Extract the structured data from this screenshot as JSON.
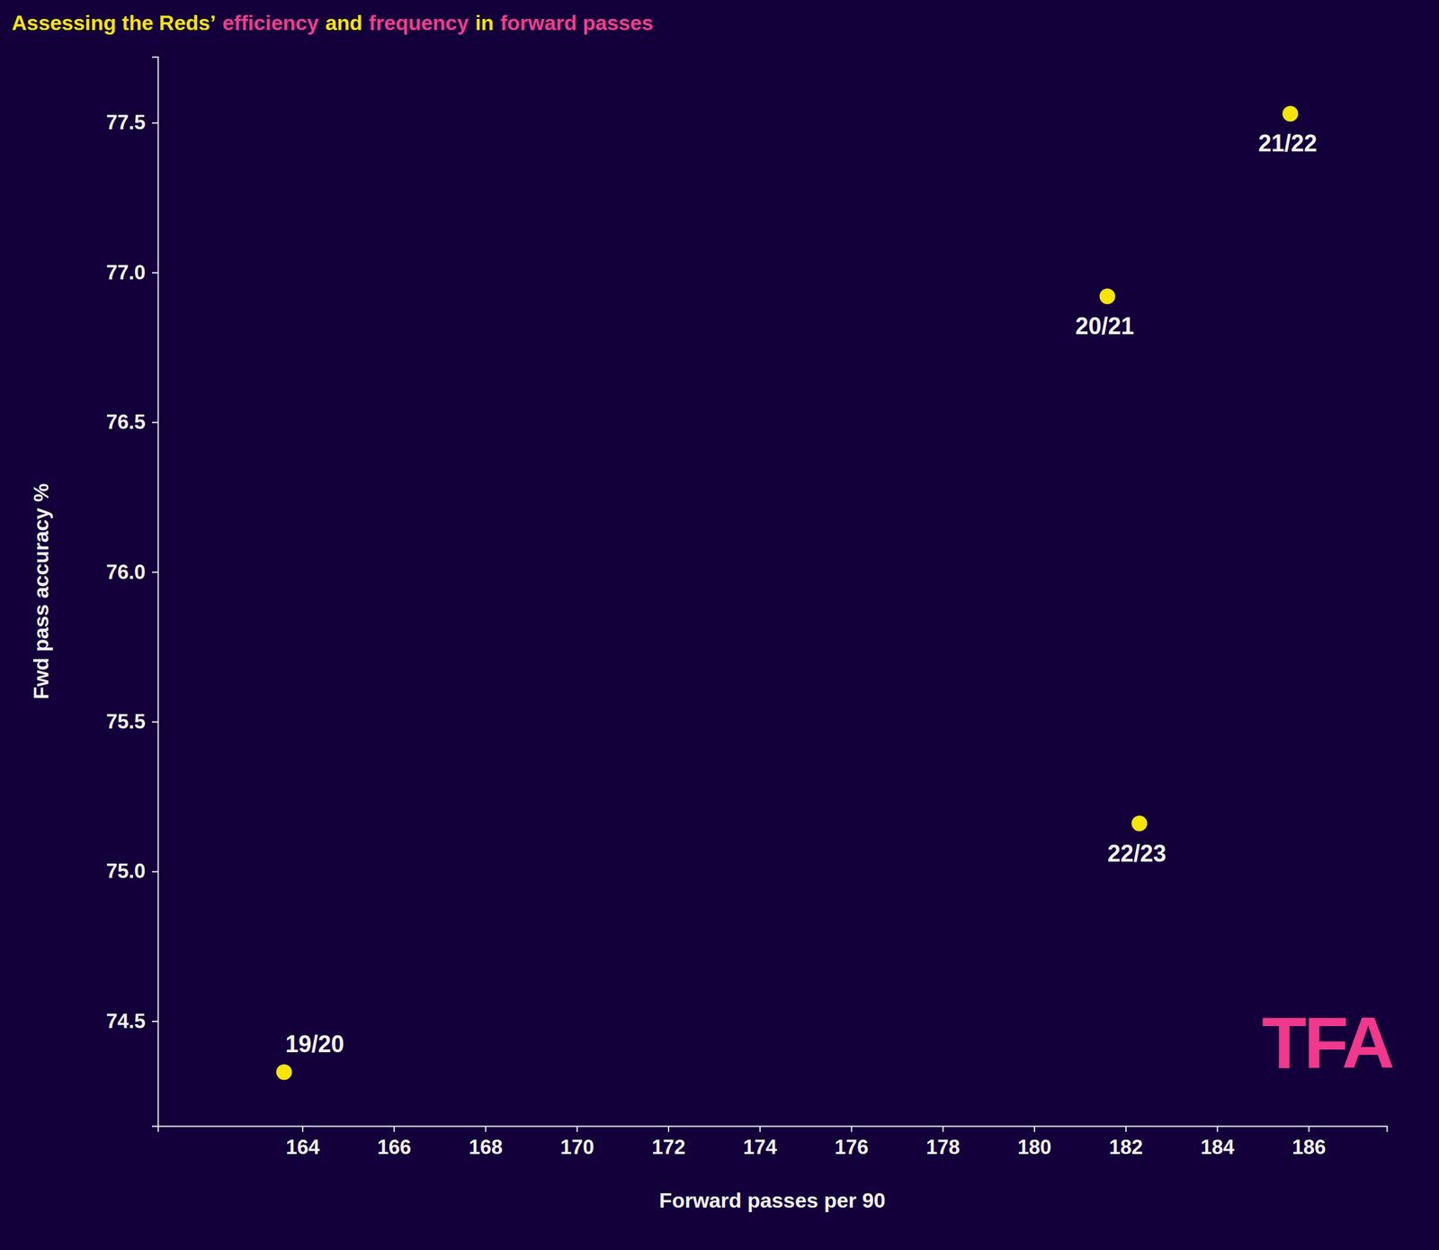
{
  "chart_data": {
    "type": "scatter",
    "title": [
      {
        "text": "Assessing the Reds’",
        "color": "#f5e50a"
      },
      {
        "text": "efficiency",
        "color": "#ef3d8f"
      },
      {
        "text": "and",
        "color": "#f5e50a"
      },
      {
        "text": "frequency",
        "color": "#ef3d8f"
      },
      {
        "text": "in",
        "color": "#f5e50a"
      },
      {
        "text": "forward passes",
        "color": "#ef3d8f"
      }
    ],
    "x_label": "Forward passes per 90",
    "y_label": "Fwd pass accuracy %",
    "labels": [
      "19/20",
      "20/21",
      "21/22",
      "22/23"
    ],
    "x": [
      163.6,
      181.6,
      185.6,
      182.3
    ],
    "values": [
      74.33,
      76.92,
      77.53,
      75.16
    ],
    "color": "#f5e50a",
    "xlim": [
      160.84,
      187.71
    ],
    "xticks": [
      164,
      166,
      168,
      170,
      172,
      174,
      176,
      178,
      180,
      182,
      184,
      186
    ],
    "ylim": [
      74.15,
      77.72
    ],
    "yticks": [
      74.5,
      {
        "value": 75,
        "label": "75.0"
      },
      75.5,
      {
        "value": 76,
        "label": "76.0"
      },
      76.5,
      {
        "value": 77,
        "label": "77.0"
      },
      77.5
    ],
    "grid": false,
    "logo": "TFA"
  }
}
